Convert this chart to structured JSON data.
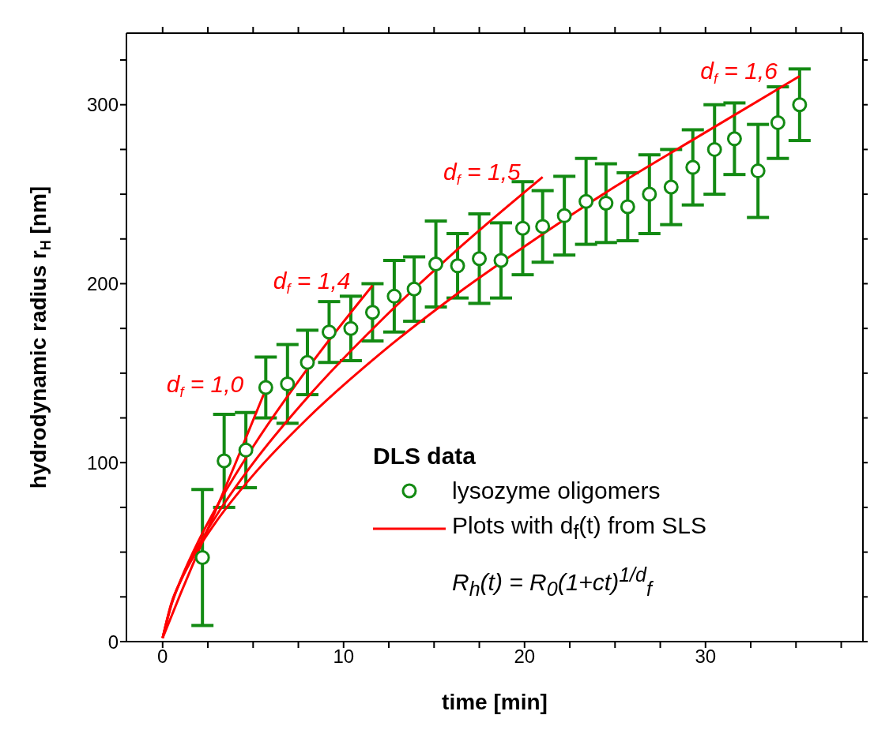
{
  "chart_data": {
    "type": "scatter",
    "xlabel": "time [min]",
    "ylabel": "hydrodynamic radius r$_{H}$ [nm]",
    "legend_title": "DLS data",
    "xlim": [
      -2,
      38.7
    ],
    "ylim": [
      0,
      340
    ],
    "xticks": [
      0,
      {
        "value": 2.5,
        "label": null
      },
      {
        "value": 5,
        "label": null
      },
      {
        "value": 7.5,
        "label": null
      },
      10,
      {
        "value": 12.5,
        "label": null
      },
      {
        "value": 15,
        "label": null
      },
      {
        "value": 17.5,
        "label": null
      },
      20,
      {
        "value": 22.5,
        "label": null
      },
      {
        "value": 25,
        "label": null
      },
      {
        "value": 27.5,
        "label": null
      },
      30,
      {
        "value": 32.5,
        "label": null
      },
      {
        "value": 35,
        "label": null
      },
      {
        "value": 37.5,
        "label": null
      }
    ],
    "yticks": [
      0,
      {
        "value": 25,
        "label": null
      },
      {
        "value": 50,
        "label": null
      },
      {
        "value": 75,
        "label": null
      },
      100,
      {
        "value": 125,
        "label": null
      },
      {
        "value": 150,
        "label": null
      },
      {
        "value": 175,
        "label": null
      },
      200,
      {
        "value": 225,
        "label": null
      },
      {
        "value": 250,
        "label": null
      },
      {
        "value": 275,
        "label": null
      },
      300,
      {
        "value": 325,
        "label": null
      }
    ],
    "legend": "bottom right",
    "line_style": "solid",
    "series": [
      {
        "marker": "circle",
        "name": "lysozyme oligomers",
        "color": "#138a13",
        "x": [
          2.2,
          3.4,
          4.6,
          5.7,
          6.9,
          8.0,
          9.2,
          10.4,
          11.6,
          12.8,
          13.9,
          15.1,
          16.3,
          17.5,
          18.7,
          19.9,
          21.0,
          22.2,
          23.4,
          24.5,
          25.7,
          26.9,
          28.1,
          29.3,
          30.5,
          31.6,
          32.9,
          34.0,
          35.2
        ],
        "values": [
          47,
          101,
          107,
          142,
          144,
          156,
          173,
          175,
          184,
          193,
          197,
          211,
          210,
          214,
          213,
          231,
          232,
          238,
          246,
          245,
          243,
          250,
          254,
          265,
          275,
          281,
          263,
          290,
          300
        ],
        "errors": [
          38,
          26,
          21,
          17,
          22,
          18,
          17,
          18,
          16,
          20,
          18,
          24,
          18,
          25,
          21,
          26,
          20,
          22,
          24,
          22,
          19,
          22,
          21,
          21,
          25,
          20,
          26,
          20,
          20
        ]
      },
      {
        "type": "line",
        "name": "Plots with d$_{f}$(t) from SLS",
        "color": "#ff0000",
        "x": [
          0,
          1,
          2,
          3,
          4,
          5.7
        ],
        "values": [
          2,
          27,
          51,
          75,
          99,
          141
        ]
      },
      {
        "type": "line",
        "color": "#ff0000",
        "x": [
          0,
          0.5,
          1,
          2,
          3,
          5,
          8,
          11.6
        ],
        "values": [
          2,
          21,
          34.5,
          56.6,
          75.6,
          108.9,
          152.4,
          199
        ]
      },
      {
        "type": "line",
        "color": "#ff0000",
        "x": [
          0,
          0.5,
          1,
          2,
          3,
          5,
          8,
          12,
          16,
          21
        ],
        "values": [
          2,
          21.5,
          34.1,
          54.1,
          70.9,
          99.7,
          136.4,
          178.7,
          216.5,
          259.6
        ]
      },
      {
        "type": "line",
        "color": "#ff0000",
        "x": [
          0,
          0.5,
          1,
          2,
          3,
          5,
          8,
          12,
          16,
          20,
          25,
          30,
          35.2
        ],
        "values": [
          2,
          22,
          34,
          52.5,
          67.6,
          93,
          124.7,
          160.7,
          192.3,
          220.8,
          254.2,
          284.6,
          316
        ]
      }
    ],
    "annotations": [
      {
        "text": "d$_{f}$ = 1,0",
        "x": 5.7,
        "y": 141
      },
      {
        "text": "d$_{f}$ = 1,4",
        "x": 11.6,
        "y": 199
      },
      {
        "text": "d$_{f}$ = 1,5",
        "x": 21,
        "y": 259.6
      },
      {
        "text": "d$_{f}$ = 1,6",
        "x": 35.2,
        "y": 316
      },
      "R$_{h}$(t) = R$_{0}$(1+ct)$^{1/d}$$_{f}$"
    ]
  }
}
